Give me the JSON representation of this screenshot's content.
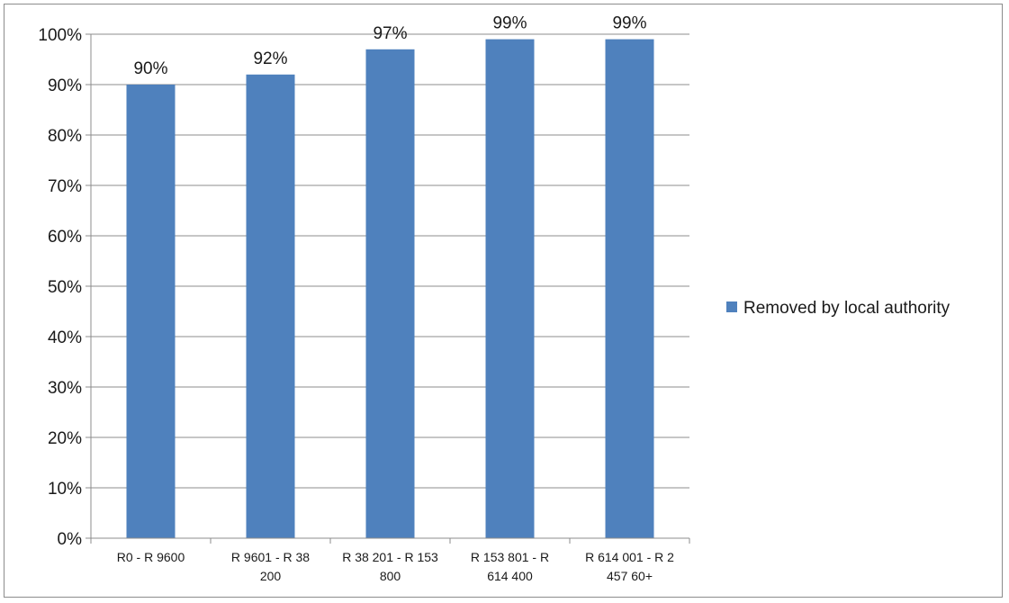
{
  "chart_data": {
    "type": "bar",
    "categories": [
      [
        "R0 - R 9600"
      ],
      [
        "R 9601 - R 38",
        "200"
      ],
      [
        "R 38 201 - R 153",
        "800"
      ],
      [
        "R 153 801 - R",
        "614 400"
      ],
      [
        "R 614 001 - R 2",
        "457 60+"
      ]
    ],
    "series": [
      {
        "name": "Removed by local authority",
        "values": [
          90,
          92,
          97,
          99,
          99
        ],
        "labels": [
          "90%",
          "92%",
          "97%",
          "99%",
          "99%"
        ],
        "color": "#4f81bd"
      }
    ],
    "ylim": [
      0,
      100
    ],
    "yticks": [
      "0%",
      "10%",
      "20%",
      "30%",
      "40%",
      "50%",
      "60%",
      "70%",
      "80%",
      "90%",
      "100%"
    ],
    "grid": true,
    "legend_position": "right",
    "gridline_color": "#8c8c8c"
  }
}
